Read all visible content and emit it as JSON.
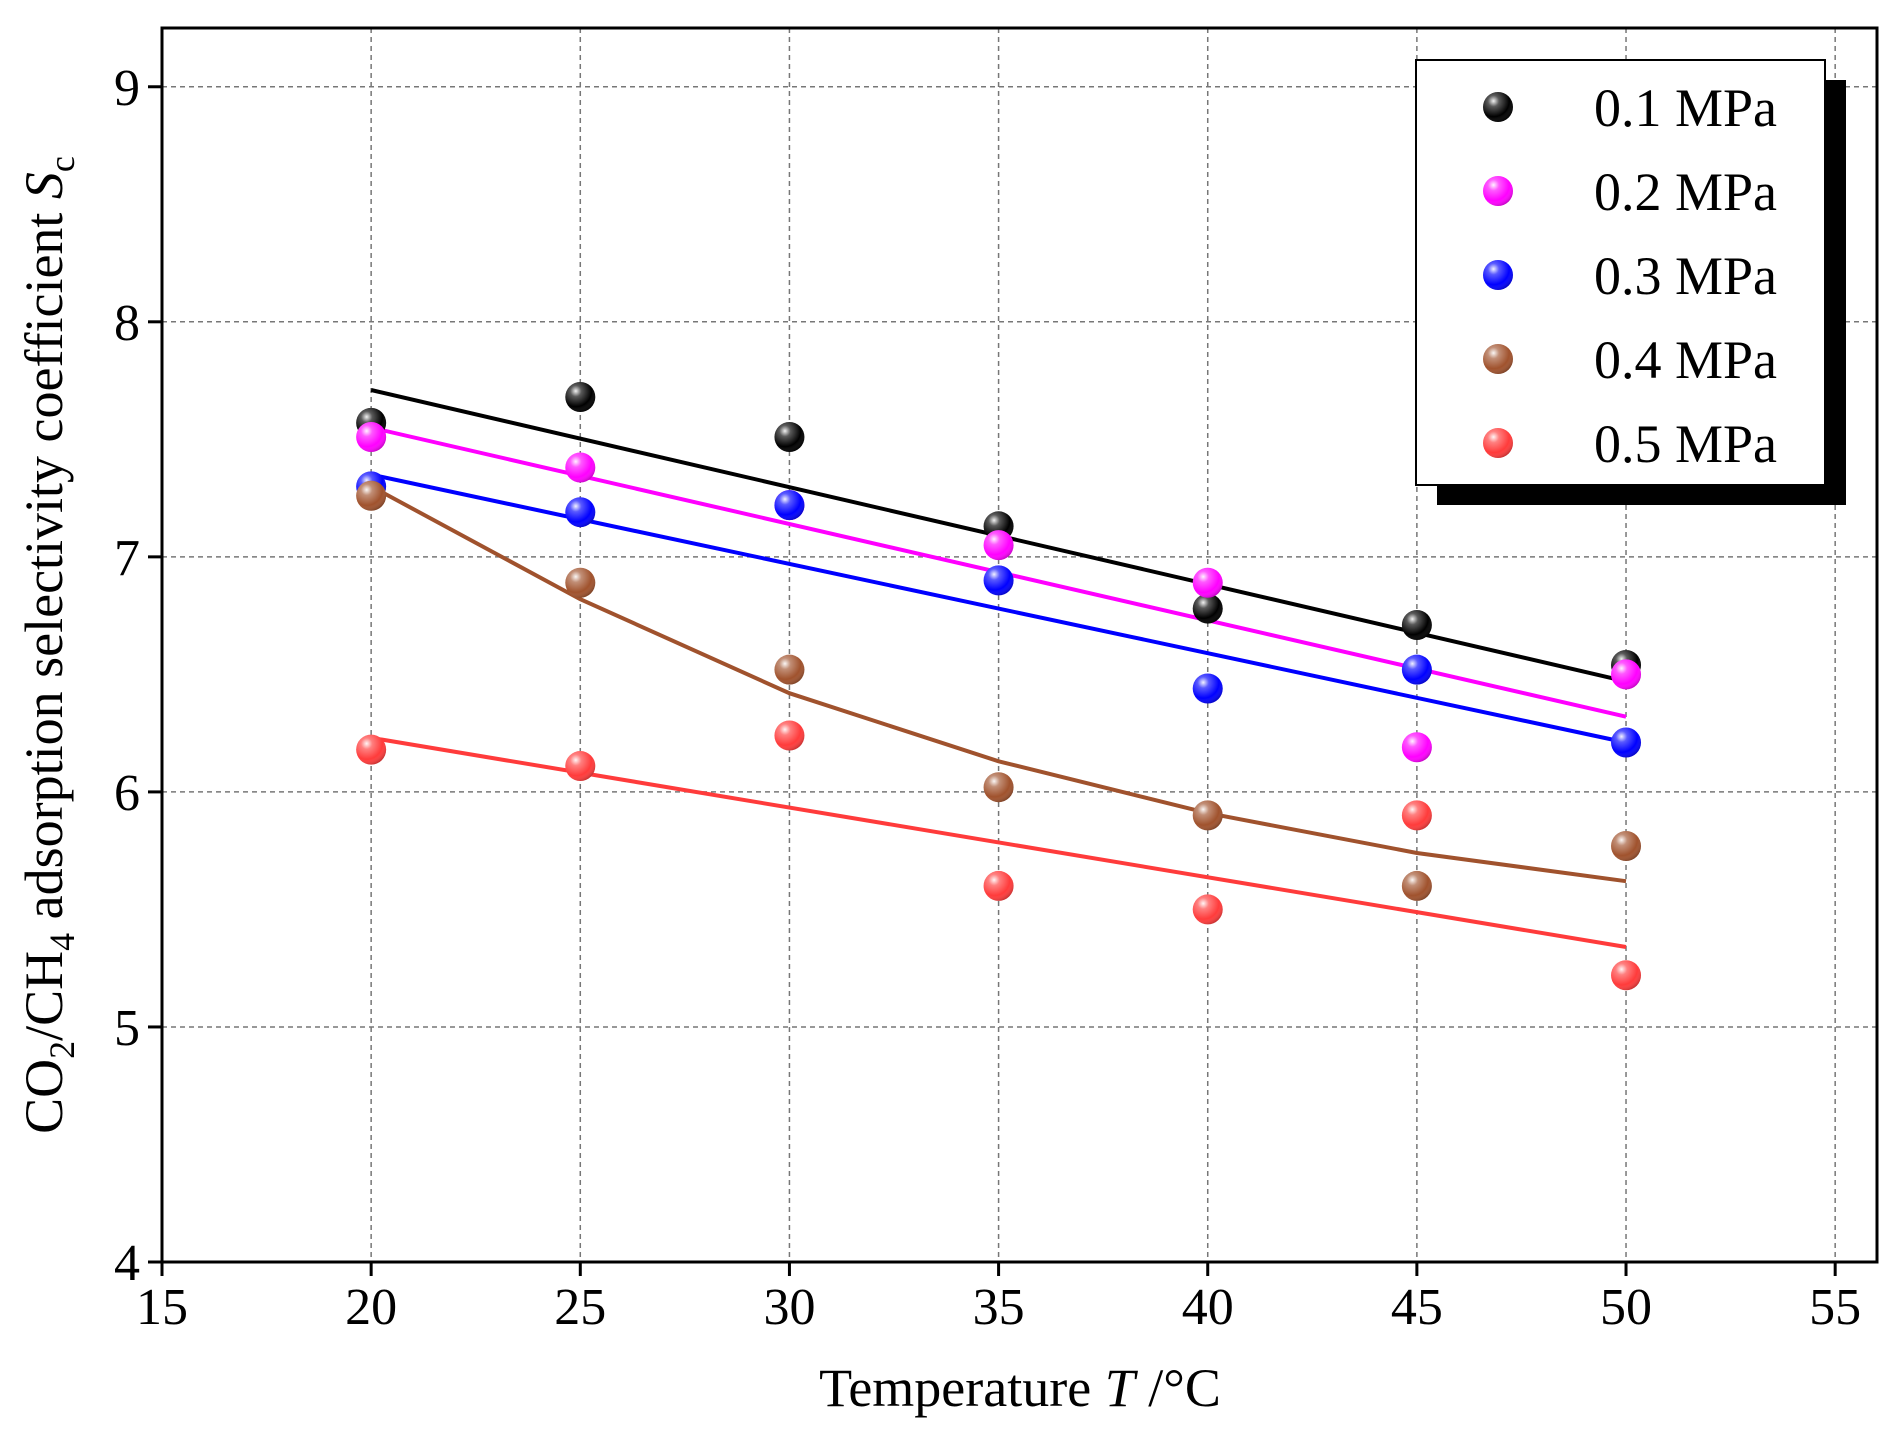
{
  "chart_data": {
    "type": "scatter",
    "xlabel": "Temperature T /°C",
    "xlabel_parts": {
      "prefix": "Temperature ",
      "italic": "T",
      "suffix": " /°C"
    },
    "ylabel": "CO2/CH4 adsorption selectivity coefficient Sc",
    "ylabel_parts": {
      "co": "CO",
      "sub2": "2",
      "slash_ch": "/CH",
      "sub4": "4",
      "middle": " adsorption selectivity coefficient ",
      "s": "S",
      "subc": "c"
    },
    "xlim": [
      15,
      56
    ],
    "ylim": [
      4,
      9.25
    ],
    "xticks": [
      15,
      20,
      25,
      30,
      35,
      40,
      45,
      50,
      55
    ],
    "yticks": [
      4,
      5,
      6,
      7,
      8,
      9
    ],
    "grid": true,
    "legend_position": "top-right",
    "x": [
      20,
      25,
      30,
      35,
      40,
      45,
      50
    ],
    "series": [
      {
        "name": "0.1 MPa",
        "color": "#000000",
        "values": [
          7.57,
          7.68,
          7.51,
          7.13,
          6.78,
          6.71,
          6.54
        ],
        "fit": {
          "x": [
            20,
            50
          ],
          "y": [
            7.71,
            6.47
          ]
        }
      },
      {
        "name": "0.2 MPa",
        "color": "#ff00ff",
        "values": [
          7.51,
          7.38,
          7.22,
          7.05,
          6.89,
          6.19,
          6.5
        ],
        "fit": {
          "x": [
            20,
            50
          ],
          "y": [
            7.55,
            6.32
          ]
        }
      },
      {
        "name": "0.3 MPa",
        "color": "#0000ff",
        "values": [
          7.3,
          7.19,
          7.22,
          6.9,
          6.44,
          6.52,
          6.21
        ],
        "fit": {
          "x": [
            20,
            50
          ],
          "y": [
            7.35,
            6.21
          ]
        }
      },
      {
        "name": "0.4 MPa",
        "color": "#a0522d",
        "values": [
          7.26,
          6.89,
          6.52,
          6.02,
          5.9,
          5.6,
          5.77
        ],
        "fit": {
          "x": [
            20,
            25,
            30,
            35,
            40,
            45,
            50
          ],
          "y": [
            7.3,
            6.82,
            6.42,
            6.13,
            5.91,
            5.74,
            5.62
          ]
        }
      },
      {
        "name": "0.5 MPa",
        "color": "#ff3b3b",
        "values": [
          6.18,
          6.11,
          6.24,
          5.6,
          5.5,
          5.9,
          5.22
        ],
        "fit": {
          "x": [
            20,
            50
          ],
          "y": [
            6.23,
            5.34
          ]
        }
      }
    ]
  }
}
